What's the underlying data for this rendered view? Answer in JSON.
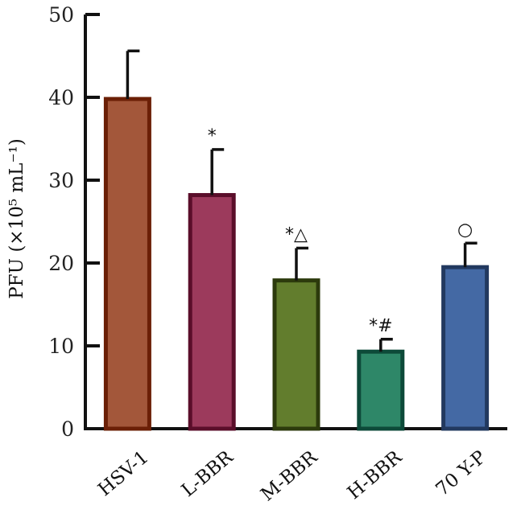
{
  "chart_data": {
    "type": "bar",
    "categories": [
      "HSV-1",
      "L-BBR",
      "M-BBR",
      "H-BBR",
      "70 Y-P"
    ],
    "values": [
      39.8,
      28.2,
      17.9,
      9.3,
      19.5
    ],
    "errors": [
      5.8,
      5.5,
      3.9,
      1.5,
      2.9
    ],
    "annotations": [
      "",
      "*",
      "*△",
      "*#",
      "○"
    ],
    "ylabel": "PFU (×10⁵ mL⁻¹)",
    "ylim": [
      0,
      50
    ],
    "yticks": [
      0,
      10,
      20,
      30,
      40,
      50
    ],
    "grid": false,
    "colors": {
      "fill": [
        "#a3573a",
        "#9c3a5c",
        "#627d2d",
        "#2e8768",
        "#4469a4"
      ],
      "stroke": [
        "#6b1f06",
        "#5a0e2a",
        "#2c3a0c",
        "#0d4a39",
        "#22395f"
      ]
    }
  }
}
